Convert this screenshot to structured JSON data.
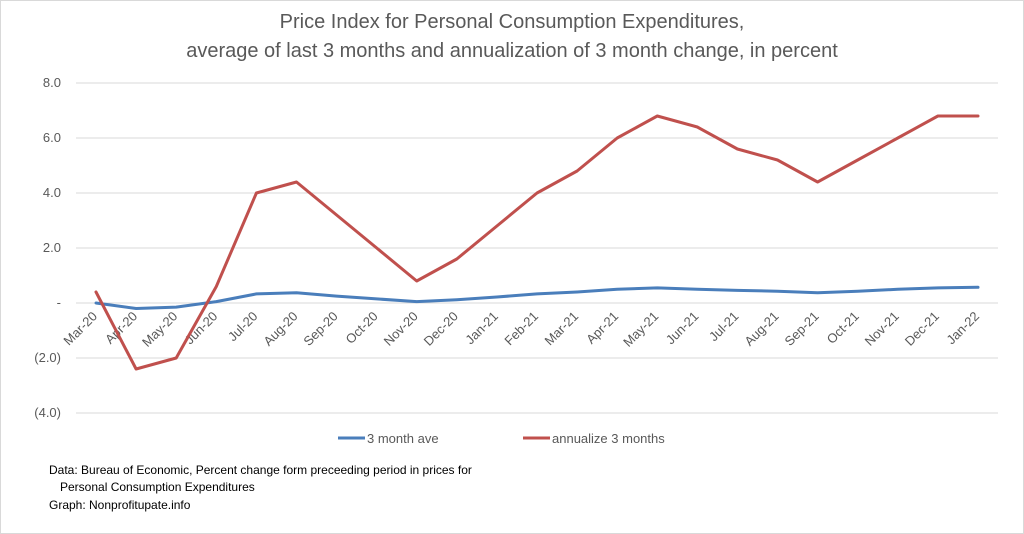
{
  "chart_data": {
    "type": "line",
    "title": [
      "Price Index for Personal Consumption Expenditures,",
      "average of last 3 months and annualization of 3 month change, in percent"
    ],
    "x": [
      "Mar-20",
      "Apr-20",
      "May-20",
      "Jun-20",
      "Jul-20",
      "Aug-20",
      "Sep-20",
      "Oct-20",
      "Nov-20",
      "Dec-20",
      "Jan-21",
      "Feb-21",
      "Mar-21",
      "Apr-21",
      "May-21",
      "Jun-21",
      "Jul-21",
      "Aug-21",
      "Sep-21",
      "Oct-21",
      "Nov-21",
      "Dec-21",
      "Jan-22"
    ],
    "ylim": [
      -4,
      8
    ],
    "yticks": [
      8,
      6,
      4,
      2,
      0,
      -2,
      -4
    ],
    "ytick_labels": [
      "8.0",
      "6.0",
      "4.0",
      "2.0",
      "-",
      "(2.0)",
      "(4.0)"
    ],
    "grid": true,
    "legend_position": "bottom",
    "series": [
      {
        "name": "3 month ave",
        "color": "#4a7ebb",
        "values": [
          0.0,
          -0.2,
          -0.15,
          0.05,
          0.33,
          0.37,
          0.25,
          0.15,
          0.05,
          0.12,
          0.22,
          0.33,
          0.4,
          0.5,
          0.55,
          0.5,
          0.46,
          0.43,
          0.37,
          0.43,
          0.5,
          0.55,
          0.57
        ]
      },
      {
        "name": "annualize 3 months",
        "color": "#c0504d",
        "values": [
          0.4,
          -2.4,
          -2.0,
          0.6,
          4.0,
          4.4,
          3.2,
          2.0,
          0.8,
          1.6,
          2.8,
          4.0,
          4.8,
          6.0,
          6.8,
          6.4,
          5.6,
          5.2,
          4.4,
          5.2,
          6.0,
          6.8,
          6.8
        ]
      }
    ]
  },
  "notes": {
    "line1": "Data: Bureau of Economic, Percent change form preceeding period in prices for",
    "line2": "Personal Consumption Expenditures",
    "line3": "Graph:  Nonprofitupate.info"
  },
  "colors": {
    "gridline": "#d9d9d9",
    "text": "#595959"
  }
}
